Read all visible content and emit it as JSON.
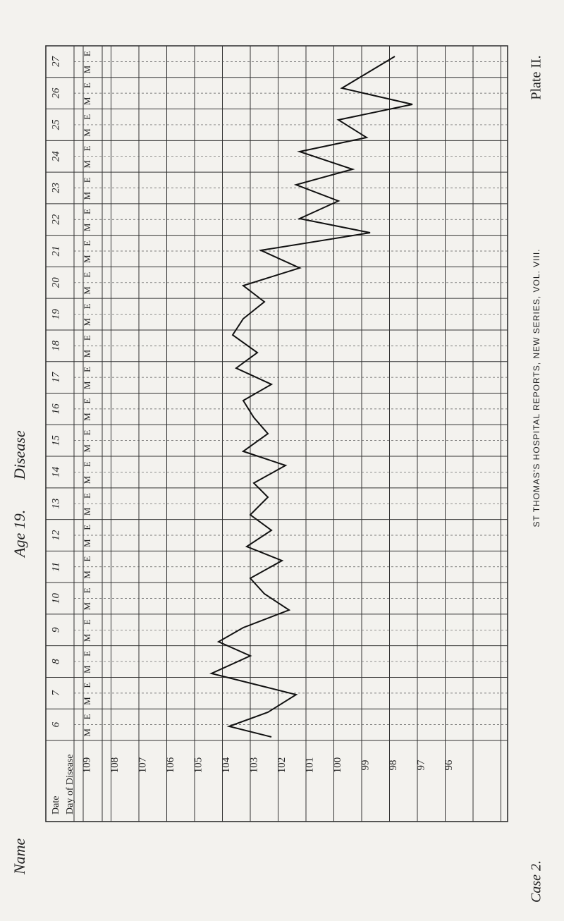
{
  "sidebar": {
    "name_label": "Name",
    "age": "Age 19.",
    "disease_label": "Disease"
  },
  "labels": {
    "date": "Date",
    "day": "Day of Disease"
  },
  "dates": [
    "27",
    "26",
    "25",
    "24",
    "23",
    "22",
    "21",
    "20",
    "19",
    "18",
    "17",
    "16",
    "15",
    "14",
    "13",
    "12",
    "11",
    "10",
    "9",
    "8",
    "7",
    "6"
  ],
  "periods": [
    "M",
    "E"
  ],
  "temperatures": [
    "109",
    "108",
    "107",
    "106",
    "105",
    "104",
    "103",
    "102",
    "101",
    "100",
    "99",
    "98",
    "97",
    "96"
  ],
  "plate": "Plate II.",
  "case": "Case 2.",
  "footer": "ST THOMAS'S HOSPITAL REPORTS, NEW SERIES, VOL. VIII."
}
